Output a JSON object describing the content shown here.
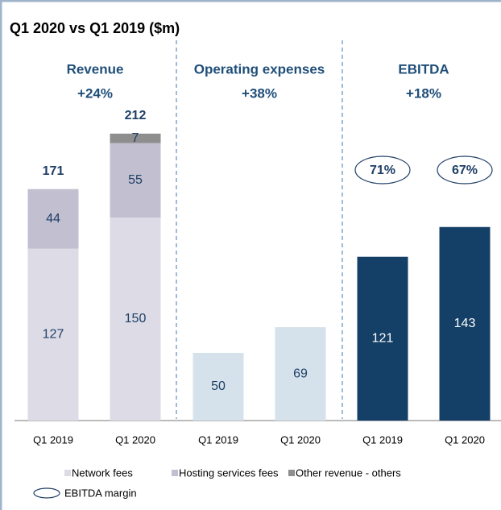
{
  "title": "Q1 2020 vs Q1 2019 ($m)",
  "chart_data": [
    {
      "type": "stacked-bar",
      "title": "Revenue",
      "subtitle": "+24%",
      "categories": [
        "Q1 2019",
        "Q1 2020"
      ],
      "series": [
        {
          "name": "Network fees",
          "color": "#dcdbe6",
          "values": [
            127,
            150
          ]
        },
        {
          "name": "Hosting services fees",
          "color": "#c1bfd0",
          "values": [
            44,
            55
          ]
        },
        {
          "name": "Other revenue - others",
          "color": "#8e8e8e",
          "values": [
            null,
            7
          ]
        }
      ],
      "totals": [
        171,
        212
      ]
    },
    {
      "type": "bar",
      "title": "Operating expenses",
      "subtitle": "+38%",
      "categories": [
        "Q1 2019",
        "Q1 2020"
      ],
      "values": [
        50,
        69
      ],
      "color": "#d6e2eb"
    },
    {
      "type": "bar",
      "title": "EBITDA",
      "subtitle": "+18%",
      "categories": [
        "Q1 2019",
        "Q1 2020"
      ],
      "values": [
        121,
        143
      ],
      "color": "#143f66",
      "margin_name": "EBITDA margin",
      "margins": [
        71,
        67
      ],
      "margin_labels": [
        "71%",
        "67%"
      ]
    }
  ]
}
